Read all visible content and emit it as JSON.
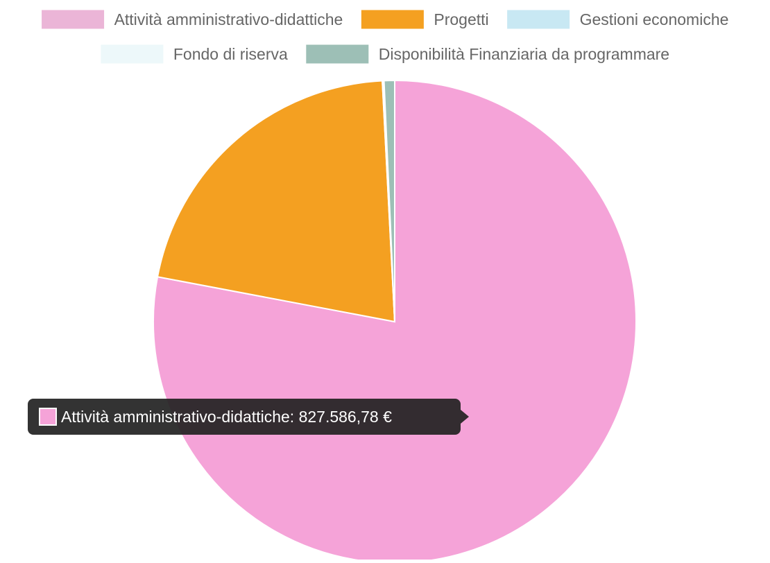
{
  "chart_data": {
    "type": "pie",
    "title": "",
    "legend_position": "top",
    "categories": [
      "Attività amministrativo-didattiche",
      "Progetti",
      "Gestioni economiche",
      "Fondo di riserva",
      "Disponibilità Finanziaria da programmare"
    ],
    "values": [
      827586.78,
      225000,
      300,
      900,
      7500
    ],
    "colors": [
      "#F5A3D8",
      "#F4A021",
      "#C8E8F3",
      "#EDF8FA",
      "#9DBFB6"
    ],
    "legend_swatch_colors": [
      "#EBB5D7",
      "#F4A021",
      "#C8E8F3",
      "#EDF8FA",
      "#9DBFB6"
    ],
    "slice_border_color": "#ffffff",
    "tooltip": {
      "text": "Attività amministrativo-didattiche: 827.586,78 €",
      "swatch_color": "#F5A3D8",
      "background": "#222222"
    }
  }
}
